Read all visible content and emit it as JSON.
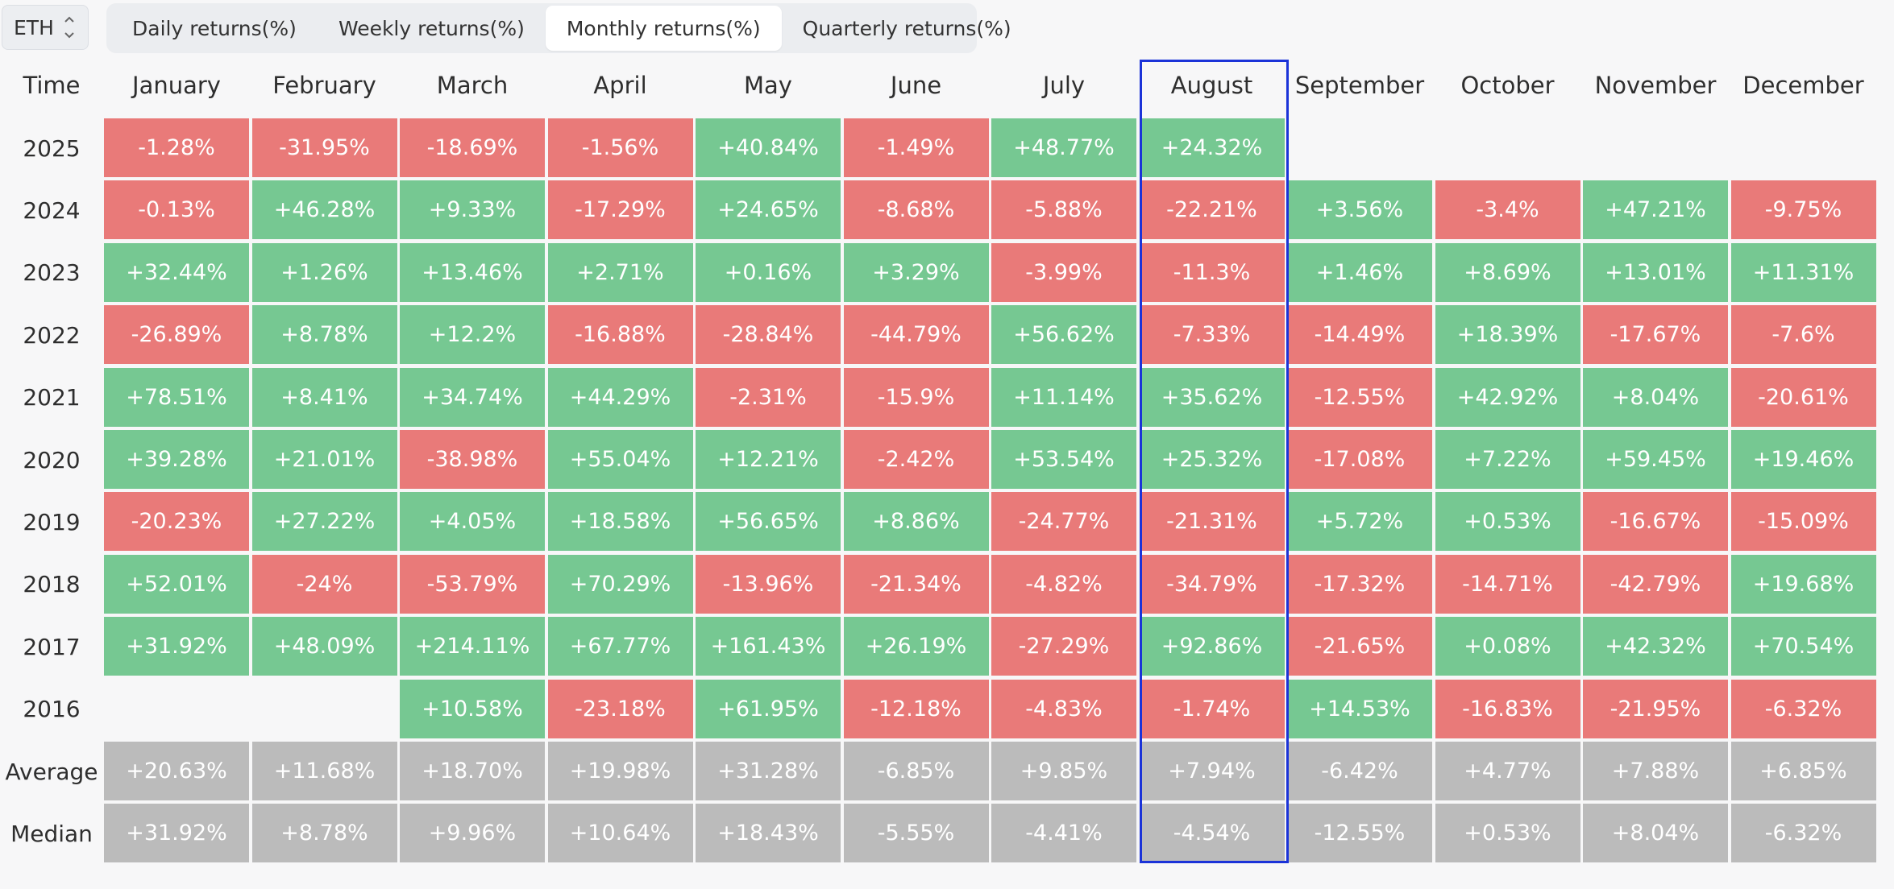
{
  "asset_select": {
    "value": "ETH"
  },
  "tabs": [
    {
      "label": "Daily returns(%)",
      "active": false
    },
    {
      "label": "Weekly returns(%)",
      "active": false
    },
    {
      "label": "Monthly returns(%)",
      "active": true
    },
    {
      "label": "Quarterly returns(%)",
      "active": false
    }
  ],
  "colors": {
    "positive": "#76c892",
    "negative": "#e97a79",
    "stat": "#bbbbbb",
    "highlight": "#1b33d8"
  },
  "highlighted_column": "August",
  "table": {
    "corner_label": "Time",
    "months": [
      "January",
      "February",
      "March",
      "April",
      "May",
      "June",
      "July",
      "August",
      "September",
      "October",
      "November",
      "December"
    ],
    "rows": [
      {
        "label": "2025",
        "values": [
          "-1.28%",
          "-31.95%",
          "-18.69%",
          "-1.56%",
          "+40.84%",
          "-1.49%",
          "+48.77%",
          "+24.32%",
          "",
          "",
          "",
          ""
        ]
      },
      {
        "label": "2024",
        "values": [
          "-0.13%",
          "+46.28%",
          "+9.33%",
          "-17.29%",
          "+24.65%",
          "-8.68%",
          "-5.88%",
          "-22.21%",
          "+3.56%",
          "-3.4%",
          "+47.21%",
          "-9.75%"
        ]
      },
      {
        "label": "2023",
        "values": [
          "+32.44%",
          "+1.26%",
          "+13.46%",
          "+2.71%",
          "+0.16%",
          "+3.29%",
          "-3.99%",
          "-11.3%",
          "+1.46%",
          "+8.69%",
          "+13.01%",
          "+11.31%"
        ]
      },
      {
        "label": "2022",
        "values": [
          "-26.89%",
          "+8.78%",
          "+12.2%",
          "-16.88%",
          "-28.84%",
          "-44.79%",
          "+56.62%",
          "-7.33%",
          "-14.49%",
          "+18.39%",
          "-17.67%",
          "-7.6%"
        ]
      },
      {
        "label": "2021",
        "values": [
          "+78.51%",
          "+8.41%",
          "+34.74%",
          "+44.29%",
          "-2.31%",
          "-15.9%",
          "+11.14%",
          "+35.62%",
          "-12.55%",
          "+42.92%",
          "+8.04%",
          "-20.61%"
        ]
      },
      {
        "label": "2020",
        "values": [
          "+39.28%",
          "+21.01%",
          "-38.98%",
          "+55.04%",
          "+12.21%",
          "-2.42%",
          "+53.54%",
          "+25.32%",
          "-17.08%",
          "+7.22%",
          "+59.45%",
          "+19.46%"
        ]
      },
      {
        "label": "2019",
        "values": [
          "-20.23%",
          "+27.22%",
          "+4.05%",
          "+18.58%",
          "+56.65%",
          "+8.86%",
          "-24.77%",
          "-21.31%",
          "+5.72%",
          "+0.53%",
          "-16.67%",
          "-15.09%"
        ]
      },
      {
        "label": "2018",
        "values": [
          "+52.01%",
          "-24%",
          "-53.79%",
          "+70.29%",
          "-13.96%",
          "-21.34%",
          "-4.82%",
          "-34.79%",
          "-17.32%",
          "-14.71%",
          "-42.79%",
          "+19.68%"
        ]
      },
      {
        "label": "2017",
        "values": [
          "+31.92%",
          "+48.09%",
          "+214.11%",
          "+67.77%",
          "+161.43%",
          "+26.19%",
          "-27.29%",
          "+92.86%",
          "-21.65%",
          "+0.08%",
          "+42.32%",
          "+70.54%"
        ]
      },
      {
        "label": "2016",
        "values": [
          "",
          "",
          "+10.58%",
          "-23.18%",
          "+61.95%",
          "-12.18%",
          "-4.83%",
          "-1.74%",
          "+14.53%",
          "-16.83%",
          "-21.95%",
          "-6.32%"
        ]
      }
    ],
    "stats": [
      {
        "label": "Average",
        "values": [
          "+20.63%",
          "+11.68%",
          "+18.70%",
          "+19.98%",
          "+31.28%",
          "-6.85%",
          "+9.85%",
          "+7.94%",
          "-6.42%",
          "+4.77%",
          "+7.88%",
          "+6.85%"
        ]
      },
      {
        "label": "Median",
        "values": [
          "+31.92%",
          "+8.78%",
          "+9.96%",
          "+10.64%",
          "+18.43%",
          "-5.55%",
          "-4.41%",
          "-4.54%",
          "-12.55%",
          "+0.53%",
          "+8.04%",
          "-6.32%"
        ]
      }
    ]
  }
}
